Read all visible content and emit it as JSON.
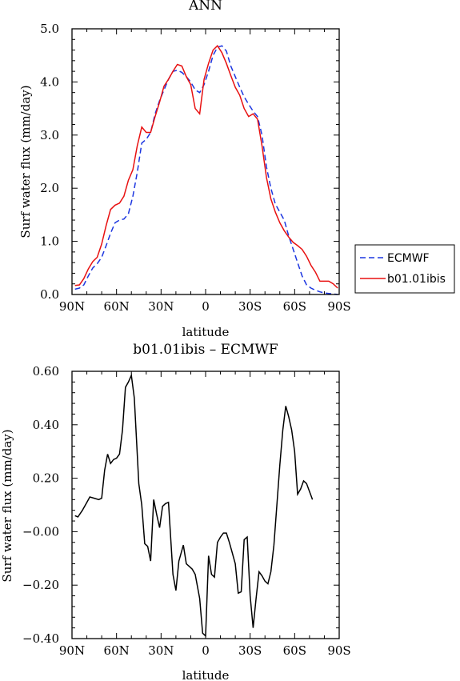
{
  "chart_data": [
    {
      "type": "line",
      "title": "ANN",
      "xlabel": "latitude",
      "ylabel": "Surf water flux (mm/day)",
      "xlim": [
        90,
        -90
      ],
      "ylim": [
        0.0,
        5.0
      ],
      "xticks": [
        {
          "value": 90,
          "label": "90N"
        },
        {
          "value": 60,
          "label": "60N"
        },
        {
          "value": 30,
          "label": "30N"
        },
        {
          "value": 0,
          "label": "0"
        },
        {
          "value": -30,
          "label": "30S"
        },
        {
          "value": -60,
          "label": "60S"
        },
        {
          "value": -90,
          "label": "90S"
        }
      ],
      "yticks": [
        {
          "value": 0.0,
          "label": "0.0"
        },
        {
          "value": 1.0,
          "label": "1.0"
        },
        {
          "value": 2.0,
          "label": "2.0"
        },
        {
          "value": 3.0,
          "label": "3.0"
        },
        {
          "value": 4.0,
          "label": "4.0"
        },
        {
          "value": 5.0,
          "label": "5.0"
        }
      ],
      "legend_position": "right",
      "series": [
        {
          "name": "ECMWF",
          "color": "#1c36e0",
          "dash": "dashed",
          "points": [
            [
              88,
              0.1
            ],
            [
              85,
              0.12
            ],
            [
              82,
              0.18
            ],
            [
              79,
              0.35
            ],
            [
              76,
              0.5
            ],
            [
              73,
              0.58
            ],
            [
              70,
              0.7
            ],
            [
              67,
              0.92
            ],
            [
              64,
              1.15
            ],
            [
              61,
              1.35
            ],
            [
              58,
              1.4
            ],
            [
              55,
              1.42
            ],
            [
              52,
              1.52
            ],
            [
              49,
              1.85
            ],
            [
              46,
              2.3
            ],
            [
              43,
              2.85
            ],
            [
              40,
              2.92
            ],
            [
              37,
              3.05
            ],
            [
              34,
              3.4
            ],
            [
              31,
              3.65
            ],
            [
              28,
              3.85
            ],
            [
              25,
              4.05
            ],
            [
              22,
              4.2
            ],
            [
              19,
              4.22
            ],
            [
              16,
              4.18
            ],
            [
              13,
              4.1
            ],
            [
              10,
              4.0
            ],
            [
              7,
              3.85
            ],
            [
              4,
              3.8
            ],
            [
              1,
              3.95
            ],
            [
              -2,
              4.2
            ],
            [
              -5,
              4.5
            ],
            [
              -8,
              4.65
            ],
            [
              -11,
              4.68
            ],
            [
              -14,
              4.58
            ],
            [
              -17,
              4.3
            ],
            [
              -20,
              4.1
            ],
            [
              -23,
              3.9
            ],
            [
              -26,
              3.72
            ],
            [
              -29,
              3.58
            ],
            [
              -32,
              3.45
            ],
            [
              -35,
              3.35
            ],
            [
              -38,
              3.0
            ],
            [
              -41,
              2.4
            ],
            [
              -44,
              2.0
            ],
            [
              -47,
              1.7
            ],
            [
              -50,
              1.55
            ],
            [
              -53,
              1.4
            ],
            [
              -56,
              1.1
            ],
            [
              -59,
              0.85
            ],
            [
              -62,
              0.6
            ],
            [
              -65,
              0.35
            ],
            [
              -68,
              0.18
            ],
            [
              -71,
              0.12
            ],
            [
              -74,
              0.08
            ],
            [
              -77,
              0.05
            ],
            [
              -80,
              0.03
            ],
            [
              -83,
              0.02
            ],
            [
              -86,
              0.01
            ],
            [
              -89,
              0.0
            ]
          ]
        },
        {
          "name": "b01.01ibis",
          "color": "#e81010",
          "dash": "solid",
          "points": [
            [
              88,
              0.17
            ],
            [
              85,
              0.18
            ],
            [
              82,
              0.3
            ],
            [
              79,
              0.48
            ],
            [
              76,
              0.62
            ],
            [
              73,
              0.7
            ],
            [
              70,
              0.95
            ],
            [
              67,
              1.3
            ],
            [
              64,
              1.6
            ],
            [
              61,
              1.68
            ],
            [
              58,
              1.72
            ],
            [
              55,
              1.85
            ],
            [
              52,
              2.15
            ],
            [
              49,
              2.35
            ],
            [
              46,
              2.8
            ],
            [
              43,
              3.15
            ],
            [
              40,
              3.05
            ],
            [
              37,
              3.05
            ],
            [
              34,
              3.35
            ],
            [
              31,
              3.62
            ],
            [
              28,
              3.92
            ],
            [
              25,
              4.05
            ],
            [
              22,
              4.2
            ],
            [
              19,
              4.33
            ],
            [
              16,
              4.3
            ],
            [
              13,
              4.1
            ],
            [
              10,
              3.95
            ],
            [
              7,
              3.5
            ],
            [
              4,
              3.4
            ],
            [
              1,
              4.05
            ],
            [
              -2,
              4.35
            ],
            [
              -5,
              4.6
            ],
            [
              -8,
              4.68
            ],
            [
              -11,
              4.55
            ],
            [
              -14,
              4.35
            ],
            [
              -17,
              4.12
            ],
            [
              -20,
              3.9
            ],
            [
              -23,
              3.75
            ],
            [
              -26,
              3.5
            ],
            [
              -29,
              3.35
            ],
            [
              -32,
              3.4
            ],
            [
              -35,
              3.3
            ],
            [
              -38,
              2.8
            ],
            [
              -41,
              2.2
            ],
            [
              -44,
              1.8
            ],
            [
              -47,
              1.55
            ],
            [
              -50,
              1.35
            ],
            [
              -53,
              1.2
            ],
            [
              -56,
              1.08
            ],
            [
              -59,
              0.98
            ],
            [
              -62,
              0.92
            ],
            [
              -65,
              0.85
            ],
            [
              -68,
              0.72
            ],
            [
              -71,
              0.55
            ],
            [
              -74,
              0.42
            ],
            [
              -77,
              0.25
            ],
            [
              -80,
              0.25
            ],
            [
              -83,
              0.25
            ],
            [
              -86,
              0.2
            ],
            [
              -89,
              0.12
            ]
          ]
        }
      ]
    },
    {
      "type": "line",
      "title": "b01.01ibis – ECMWF",
      "xlabel": "latitude",
      "ylabel": "Surf water flux (mm/day)",
      "xlim": [
        90,
        -90
      ],
      "ylim": [
        -0.4,
        0.6
      ],
      "xticks": [
        {
          "value": 90,
          "label": "90N"
        },
        {
          "value": 60,
          "label": "60N"
        },
        {
          "value": 30,
          "label": "30N"
        },
        {
          "value": 0,
          "label": "0"
        },
        {
          "value": -30,
          "label": "30S"
        },
        {
          "value": -60,
          "label": "60S"
        },
        {
          "value": -90,
          "label": "90S"
        }
      ],
      "yticks": [
        {
          "value": -0.4,
          "label": "−0.40"
        },
        {
          "value": -0.2,
          "label": "−0.20"
        },
        {
          "value": 0.0,
          "label": "−0.00"
        },
        {
          "value": 0.2,
          "label": "0.20"
        },
        {
          "value": 0.4,
          "label": "0.40"
        },
        {
          "value": 0.6,
          "label": "0.60"
        }
      ],
      "series": [
        {
          "color": "#000000",
          "dash": "solid",
          "points": [
            [
              88,
              0.06
            ],
            [
              86,
              0.055
            ],
            [
              83,
              0.08
            ],
            [
              80,
              0.11
            ],
            [
              78,
              0.13
            ],
            [
              75,
              0.125
            ],
            [
              72,
              0.12
            ],
            [
              70,
              0.125
            ],
            [
              68,
              0.23
            ],
            [
              66,
              0.29
            ],
            [
              64,
              0.255
            ],
            [
              62,
              0.27
            ],
            [
              60,
              0.275
            ],
            [
              58,
              0.29
            ],
            [
              56,
              0.38
            ],
            [
              54,
              0.54
            ],
            [
              52,
              0.56
            ],
            [
              50,
              0.585
            ],
            [
              48,
              0.5
            ],
            [
              45,
              0.18
            ],
            [
              43,
              0.1
            ],
            [
              41,
              -0.045
            ],
            [
              39,
              -0.055
            ],
            [
              37,
              -0.11
            ],
            [
              35,
              0.12
            ],
            [
              33,
              0.065
            ],
            [
              31,
              0.015
            ],
            [
              29,
              0.095
            ],
            [
              27,
              0.105
            ],
            [
              25,
              0.11
            ],
            [
              22,
              -0.16
            ],
            [
              20,
              -0.22
            ],
            [
              18,
              -0.11
            ],
            [
              15,
              -0.05
            ],
            [
              13,
              -0.12
            ],
            [
              11,
              -0.13
            ],
            [
              9,
              -0.14
            ],
            [
              7,
              -0.16
            ],
            [
              4,
              -0.25
            ],
            [
              2,
              -0.38
            ],
            [
              0,
              -0.39
            ],
            [
              -2,
              -0.09
            ],
            [
              -4,
              -0.16
            ],
            [
              -6,
              -0.17
            ],
            [
              -8,
              -0.04
            ],
            [
              -10,
              -0.02
            ],
            [
              -12,
              -0.005
            ],
            [
              -14,
              -0.005
            ],
            [
              -16,
              -0.04
            ],
            [
              -18,
              -0.08
            ],
            [
              -20,
              -0.12
            ],
            [
              -22,
              -0.23
            ],
            [
              -24,
              -0.225
            ],
            [
              -26,
              -0.03
            ],
            [
              -28,
              -0.02
            ],
            [
              -30,
              -0.24
            ],
            [
              -32,
              -0.36
            ],
            [
              -34,
              -0.25
            ],
            [
              -36,
              -0.15
            ],
            [
              -38,
              -0.165
            ],
            [
              -40,
              -0.185
            ],
            [
              -42,
              -0.195
            ],
            [
              -44,
              -0.15
            ],
            [
              -46,
              -0.05
            ],
            [
              -48,
              0.1
            ],
            [
              -50,
              0.25
            ],
            [
              -52,
              0.38
            ],
            [
              -54,
              0.47
            ],
            [
              -56,
              0.43
            ],
            [
              -58,
              0.38
            ],
            [
              -60,
              0.3
            ],
            [
              -62,
              0.14
            ],
            [
              -64,
              0.16
            ],
            [
              -66,
              0.19
            ],
            [
              -68,
              0.18
            ],
            [
              -70,
              0.15
            ],
            [
              -72,
              0.12
            ]
          ]
        }
      ]
    }
  ]
}
